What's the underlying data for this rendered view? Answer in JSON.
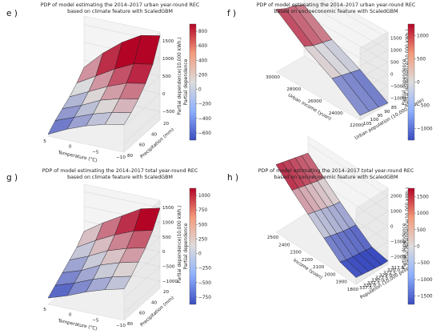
{
  "colors": {
    "pane_floor": "#efefef",
    "pane_back": "#f4f4f4",
    "pane_side": "#e9e9e9",
    "cmap_low": "#3b4cc0",
    "cmap_mid": "#dddddd",
    "cmap_high": "#b40426"
  },
  "chart_data": [
    {
      "id": "e",
      "type": "surface3d",
      "label": "e )",
      "title_lines": [
        "PDP of model estimating the 2014–2017 urban year-round REC",
        "based on climate feature with ScaledGBM"
      ],
      "xlabel": "Temperature (°C)",
      "ylabel": "Precipitation (mm)",
      "zlabel": "Partial dependence(10,000 kWh.)",
      "xticks": [
        "5",
        "0",
        "−5",
        "−10"
      ],
      "yticks": [
        "80",
        "60",
        "40",
        "20"
      ],
      "zticks": [
        "−500",
        "0",
        "500",
        "1000",
        "1500"
      ],
      "colorbar_ticks": [
        "800",
        "600",
        "400",
        "200",
        "0",
        "−200",
        "−400",
        "−600"
      ],
      "zlim": [
        -700,
        1700
      ],
      "clim": [
        -700,
        900
      ],
      "grid_x": [
        8,
        3,
        -2,
        -7,
        -12
      ],
      "grid_y": [
        85,
        70,
        55,
        40,
        25,
        10
      ],
      "z": [
        [
          -650,
          -450,
          -300,
          -150,
          50,
          300
        ],
        [
          -400,
          -250,
          -100,
          100,
          350,
          800
        ],
        [
          -200,
          -50,
          150,
          350,
          650,
          1200
        ],
        [
          -50,
          100,
          300,
          550,
          900,
          1500
        ],
        [
          50,
          200,
          400,
          650,
          1000,
          1600
        ]
      ]
    },
    {
      "id": "f",
      "type": "surface3d",
      "label": "f )",
      "title_lines": [
        "PDP of model estimating the 2014–2017 urban year-round REC",
        "based on socioeconomic feature with ScaledGBM"
      ],
      "xlabel": "Urban income (yuan)",
      "ylabel": "Urban population (10,000 people)",
      "zlabel": "Partial dependence(10,000 kWh.)",
      "xticks": [
        "30000",
        "28000",
        "26000",
        "24000",
        "22000"
      ],
      "yticks": [
        "105",
        "100",
        "95",
        "90",
        "85"
      ],
      "zticks": [
        "−1000",
        "−500",
        "0",
        "500",
        "1000",
        "1500"
      ],
      "colorbar_ticks": [
        "1000",
        "500",
        "0",
        "−500",
        "−1000"
      ],
      "zlim": [
        -1300,
        1800
      ],
      "clim": [
        -1300,
        1300
      ],
      "grid_x": [
        30000,
        27000,
        24500,
        22000
      ],
      "grid_y": [
        105,
        98,
        91,
        85
      ],
      "z": [
        [
          1400,
          1200,
          1100,
          900
        ],
        [
          500,
          300,
          200,
          100
        ],
        [
          -200,
          -300,
          -400,
          -500
        ],
        [
          -1100,
          -1150,
          -1200,
          -1250
        ]
      ]
    },
    {
      "id": "g",
      "type": "surface3d",
      "label": "g )",
      "title_lines": [
        "PDP of model estimating the 2014–2017 total year-round REC",
        "based on climate feature with ScaledGBM"
      ],
      "xlabel": "Temperature (°C)",
      "ylabel": "Precipitation (mm)",
      "zlabel": "Partial dependence(10,000 kWh.)",
      "xticks": [
        "5",
        "0",
        "−5",
        "−10"
      ],
      "yticks": [
        "80",
        "60",
        "40",
        "20"
      ],
      "zticks": [
        "−1000",
        "−500",
        "0",
        "500",
        "1000",
        "1500"
      ],
      "colorbar_ticks": [
        "1000",
        "750",
        "500",
        "250",
        "0",
        "−250",
        "−500",
        "−750"
      ],
      "zlim": [
        -1100,
        1700
      ],
      "clim": [
        -900,
        1100
      ],
      "grid_x": [
        8,
        3,
        -2,
        -7,
        -12
      ],
      "grid_y": [
        85,
        70,
        55,
        40,
        25,
        10
      ],
      "z": [
        [
          -900,
          -700,
          -500,
          -300,
          -100,
          200
        ],
        [
          -700,
          -500,
          -300,
          -50,
          250,
          600
        ],
        [
          -450,
          -250,
          0,
          250,
          550,
          950
        ],
        [
          -250,
          -50,
          200,
          450,
          800,
          1300
        ],
        [
          -100,
          100,
          350,
          600,
          950,
          1450
        ]
      ]
    },
    {
      "id": "h",
      "type": "surface3d",
      "label": "h )",
      "title_lines": [
        "PDP of model estimating the 2014–2017 total year-round REC",
        "based on socioeconomic feature with ScaledGBM"
      ],
      "xlabel": "Income (yuan)",
      "ylabel": "Population (10,000 people)",
      "zlabel": "Partial dependence(10,000 kWh.)",
      "xticks": [
        "2500",
        "2400",
        "2300",
        "2200",
        "2100",
        "2000",
        "1900",
        "1800"
      ],
      "yticks": [
        "337.5",
        "335.0",
        "332.5",
        "330.0",
        "327.5",
        "325.0",
        "322.5",
        "320.0",
        "317.5"
      ],
      "zticks": [
        "−2000",
        "−1000",
        "0",
        "1000",
        "2000"
      ],
      "colorbar_ticks": [
        "1500",
        "1000",
        "500",
        "0",
        "−500",
        "−1000",
        "−1500"
      ],
      "zlim": [
        -2200,
        2300
      ],
      "clim": [
        -1800,
        1700
      ],
      "grid_x": [
        2500,
        2350,
        2200,
        2050,
        1900,
        1800
      ],
      "grid_y": [
        337.5,
        333,
        328.5,
        324,
        319.5,
        317.5
      ],
      "z": [
        [
          1800,
          1700,
          1600,
          1500,
          1400,
          1300
        ],
        [
          900,
          800,
          700,
          600,
          500,
          450
        ],
        [
          100,
          0,
          -100,
          -200,
          -300,
          -350
        ],
        [
          -700,
          -800,
          -900,
          -1000,
          -1050,
          -1100
        ],
        [
          -1500,
          -1600,
          -1650,
          -1700,
          -1750,
          -1800
        ],
        [
          -1800,
          -1850,
          -1900,
          -1950,
          -2000,
          -2000
        ]
      ]
    }
  ]
}
